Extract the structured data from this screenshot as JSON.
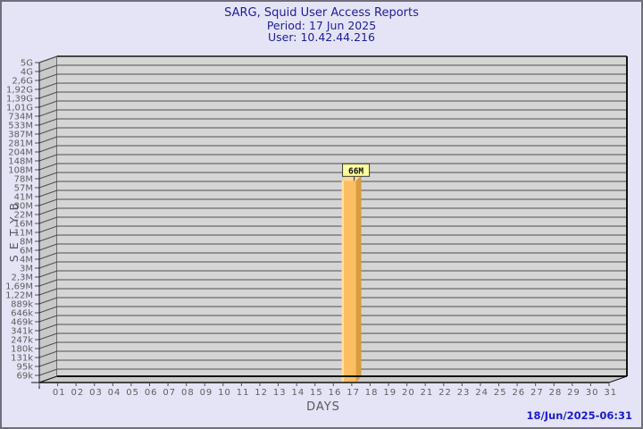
{
  "header": {
    "title": "SARG, Squid User Access Reports",
    "period": "Period: 17 Jun 2025",
    "user": "User: 10.42.44.216"
  },
  "footer": {
    "timestamp": "18/Jun/2025-06:31"
  },
  "chart_data": {
    "type": "bar",
    "title": "SARG, Squid User Access Reports",
    "subtitle": "Period: 17 Jun 2025 — User: 10.42.44.216",
    "xlabel": "DAYS",
    "ylabel": "BYTES",
    "y_scale": "log",
    "grid": true,
    "y_ticks": [
      "5G",
      "4G",
      "2,6G",
      "1,92G",
      "1,39G",
      "1,01G",
      "734M",
      "533M",
      "387M",
      "281M",
      "204M",
      "148M",
      "108M",
      "78M",
      "57M",
      "41M",
      "30M",
      "22M",
      "16M",
      "11M",
      "8M",
      "6M",
      "4M",
      "3M",
      "2,3M",
      "1,69M",
      "1,22M",
      "889k",
      "646k",
      "469k",
      "341k",
      "247k",
      "180k",
      "131k",
      "95k",
      "69k"
    ],
    "x_ticks": [
      "01",
      "02",
      "03",
      "04",
      "05",
      "06",
      "07",
      "08",
      "09",
      "10",
      "11",
      "12",
      "13",
      "14",
      "15",
      "16",
      "17",
      "18",
      "19",
      "20",
      "21",
      "22",
      "23",
      "24",
      "25",
      "26",
      "27",
      "28",
      "29",
      "30",
      "31"
    ],
    "bars": [
      {
        "day": "17",
        "label": "66M",
        "value_bytes": 66000000
      }
    ],
    "colors": {
      "background": "#e4e4f6",
      "title_text": "#1e1e96",
      "plot_bg": "#d5d5d5",
      "wall_bg": "#c9c9c9",
      "grid_line": "#4e4e4e",
      "frame_line": "#141414",
      "axis_text": "#5e5e5e",
      "bar_front": "#fcbe62",
      "bar_side": "#d99c3f",
      "bar_top": "#ffd98f",
      "bar_highlight": "#ffdf9e",
      "value_box_bg": "#ffff9e",
      "value_box_border": "#3a3a3a",
      "timestamp_text": "#1c1ccc"
    }
  }
}
